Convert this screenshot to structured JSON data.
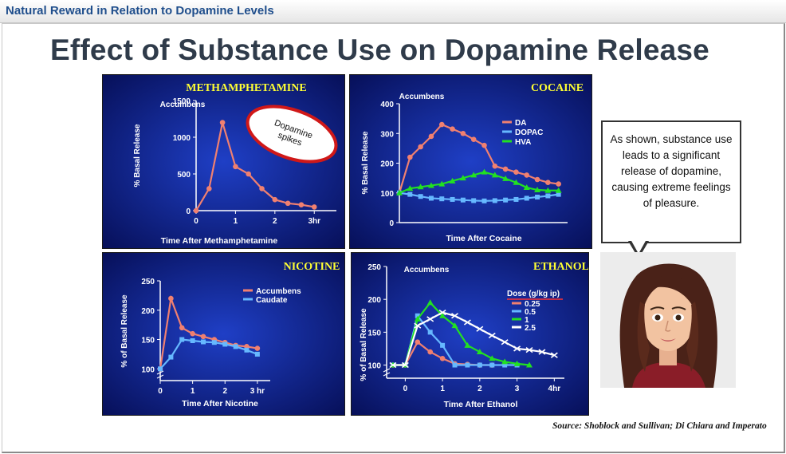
{
  "header": {
    "title": "Natural Reward in Relation to Dopamine Levels"
  },
  "slide": {
    "title": "Effect of Substance Use on Dopamine Release",
    "callout": "As shown, substance use leads to a significant release of dopamine, causing extreme feelings of pleasure.",
    "source": "Source:  Shoblock and Sullivan; Di Chiara and Imperato"
  },
  "colors": {
    "panel_bg_center": "#1f3fc6",
    "panel_bg_edge": "#07105a",
    "panel_title": "#ffff33",
    "axis": "#ffffff",
    "label": "#ffffff"
  },
  "chart_data": [
    {
      "type": "line",
      "title": "METHAMPHETAMINE",
      "region": "Accumbens",
      "annotation": "Dopamine spikes",
      "xlabel": "Time After Methamphetamine",
      "ylabel": "% Basal Release",
      "xlim": [
        0,
        3.4
      ],
      "ylim": [
        0,
        1500
      ],
      "xticks": [
        0,
        1,
        2,
        3
      ],
      "xtick_labels": [
        "0",
        "1",
        "2",
        "3hr"
      ],
      "yticks": [
        0,
        500,
        1000,
        1500
      ],
      "ytick_labels": [
        "0",
        "500",
        "1000",
        "1500"
      ],
      "series": [
        {
          "name": "",
          "color": "#f08070",
          "x": [
            0,
            0.33,
            0.67,
            1.0,
            1.33,
            1.67,
            2.0,
            2.33,
            2.67,
            3.0
          ],
          "y": [
            0,
            300,
            1200,
            600,
            500,
            300,
            150,
            100,
            80,
            50
          ]
        }
      ]
    },
    {
      "type": "line",
      "title": "COCAINE",
      "region": "Accumbens",
      "xlabel": "Time After Cocaine",
      "ylabel": "% Basal Release",
      "xlim": [
        0,
        3.05
      ],
      "ylim": [
        0,
        400
      ],
      "yticks": [
        0,
        100,
        200,
        300,
        400
      ],
      "ytick_labels": [
        "0",
        "100",
        "200",
        "300",
        "400"
      ],
      "series": [
        {
          "name": "DA",
          "color": "#f08070",
          "x": [
            0,
            0.2,
            0.4,
            0.6,
            0.8,
            1.0,
            1.2,
            1.4,
            1.6,
            1.8,
            2.0,
            2.2,
            2.4,
            2.6,
            2.8,
            3.0
          ],
          "y": [
            100,
            220,
            255,
            290,
            330,
            315,
            300,
            280,
            260,
            190,
            180,
            170,
            160,
            145,
            135,
            130
          ]
        },
        {
          "name": "DOPAC",
          "color": "#66b8ff",
          "x": [
            0,
            0.2,
            0.4,
            0.6,
            0.8,
            1.0,
            1.2,
            1.4,
            1.6,
            1.8,
            2.0,
            2.2,
            2.4,
            2.6,
            2.8,
            3.0
          ],
          "y": [
            100,
            95,
            88,
            82,
            80,
            78,
            76,
            74,
            73,
            74,
            76,
            78,
            82,
            86,
            90,
            95
          ]
        },
        {
          "name": "HVA",
          "color": "#22e022",
          "x": [
            0,
            0.2,
            0.4,
            0.6,
            0.8,
            1.0,
            1.2,
            1.4,
            1.6,
            1.8,
            2.0,
            2.2,
            2.4,
            2.6,
            2.8,
            3.0
          ],
          "y": [
            100,
            115,
            120,
            125,
            130,
            140,
            150,
            160,
            170,
            160,
            148,
            135,
            118,
            110,
            108,
            108
          ]
        }
      ]
    },
    {
      "type": "line",
      "title": "NICOTINE",
      "xlabel": "Time After Nicotine",
      "ylabel": "% of Basal Release",
      "xlim": [
        0,
        3.2
      ],
      "ylim": [
        80,
        250
      ],
      "y_break": true,
      "xticks": [
        0,
        1,
        2,
        3
      ],
      "xtick_labels": [
        "0",
        "1",
        "2",
        "3 hr"
      ],
      "yticks": [
        100,
        150,
        200,
        250
      ],
      "ytick_labels": [
        "100",
        "150",
        "200",
        "250"
      ],
      "series": [
        {
          "name": "Accumbens",
          "color": "#f08070",
          "x": [
            0,
            0.33,
            0.67,
            1.0,
            1.33,
            1.67,
            2.0,
            2.33,
            2.67,
            3.0
          ],
          "y": [
            100,
            220,
            170,
            160,
            155,
            150,
            145,
            140,
            138,
            135
          ]
        },
        {
          "name": "Caudate",
          "color": "#66b8ff",
          "x": [
            0,
            0.33,
            0.67,
            1.0,
            1.33,
            1.67,
            2.0,
            2.33,
            2.67,
            3.0
          ],
          "y": [
            100,
            120,
            150,
            148,
            146,
            145,
            142,
            138,
            132,
            125
          ]
        }
      ]
    },
    {
      "type": "line",
      "title": "ETHANOL",
      "region": "Accumbens",
      "legend_title": "Dose (g/kg ip)",
      "xlabel": "Time After Ethanol",
      "ylabel": "% of Basal Release",
      "xlim": [
        -0.5,
        4.1
      ],
      "ylim": [
        80,
        250
      ],
      "y_break": true,
      "xticks": [
        0,
        1,
        2,
        3,
        4
      ],
      "xtick_labels": [
        "0",
        "1",
        "2",
        "3",
        "4hr"
      ],
      "yticks": [
        100,
        150,
        200,
        250
      ],
      "ytick_labels": [
        "100",
        "150",
        "200",
        "250"
      ],
      "series": [
        {
          "name": "0.25",
          "color": "#f08070",
          "x": [
            -0.33,
            0,
            0.33,
            0.67,
            1.0,
            1.33,
            1.67,
            2.0,
            2.33
          ],
          "y": [
            100,
            100,
            135,
            120,
            110,
            102,
            101,
            100,
            100
          ]
        },
        {
          "name": "0.5",
          "color": "#66b8ff",
          "x": [
            -0.33,
            0,
            0.33,
            0.67,
            1.0,
            1.33,
            1.67,
            2.0,
            2.33,
            2.67,
            3.0
          ],
          "y": [
            100,
            100,
            175,
            150,
            130,
            100,
            100,
            100,
            100,
            100,
            100
          ]
        },
        {
          "name": "1",
          "color": "#22e022",
          "x": [
            -0.33,
            0,
            0.33,
            0.67,
            1.0,
            1.33,
            1.67,
            2.0,
            2.33,
            2.67,
            3.0,
            3.33
          ],
          "y": [
            100,
            100,
            170,
            195,
            175,
            160,
            130,
            120,
            110,
            105,
            102,
            100
          ]
        },
        {
          "name": "2.5",
          "color": "#ffffff",
          "x": [
            -0.33,
            0,
            0.33,
            0.67,
            1.0,
            1.33,
            1.67,
            2.0,
            2.33,
            2.67,
            3.0,
            3.33,
            3.67,
            4.0
          ],
          "y": [
            100,
            100,
            160,
            170,
            180,
            175,
            165,
            155,
            145,
            135,
            125,
            123,
            120,
            115
          ]
        }
      ]
    }
  ]
}
